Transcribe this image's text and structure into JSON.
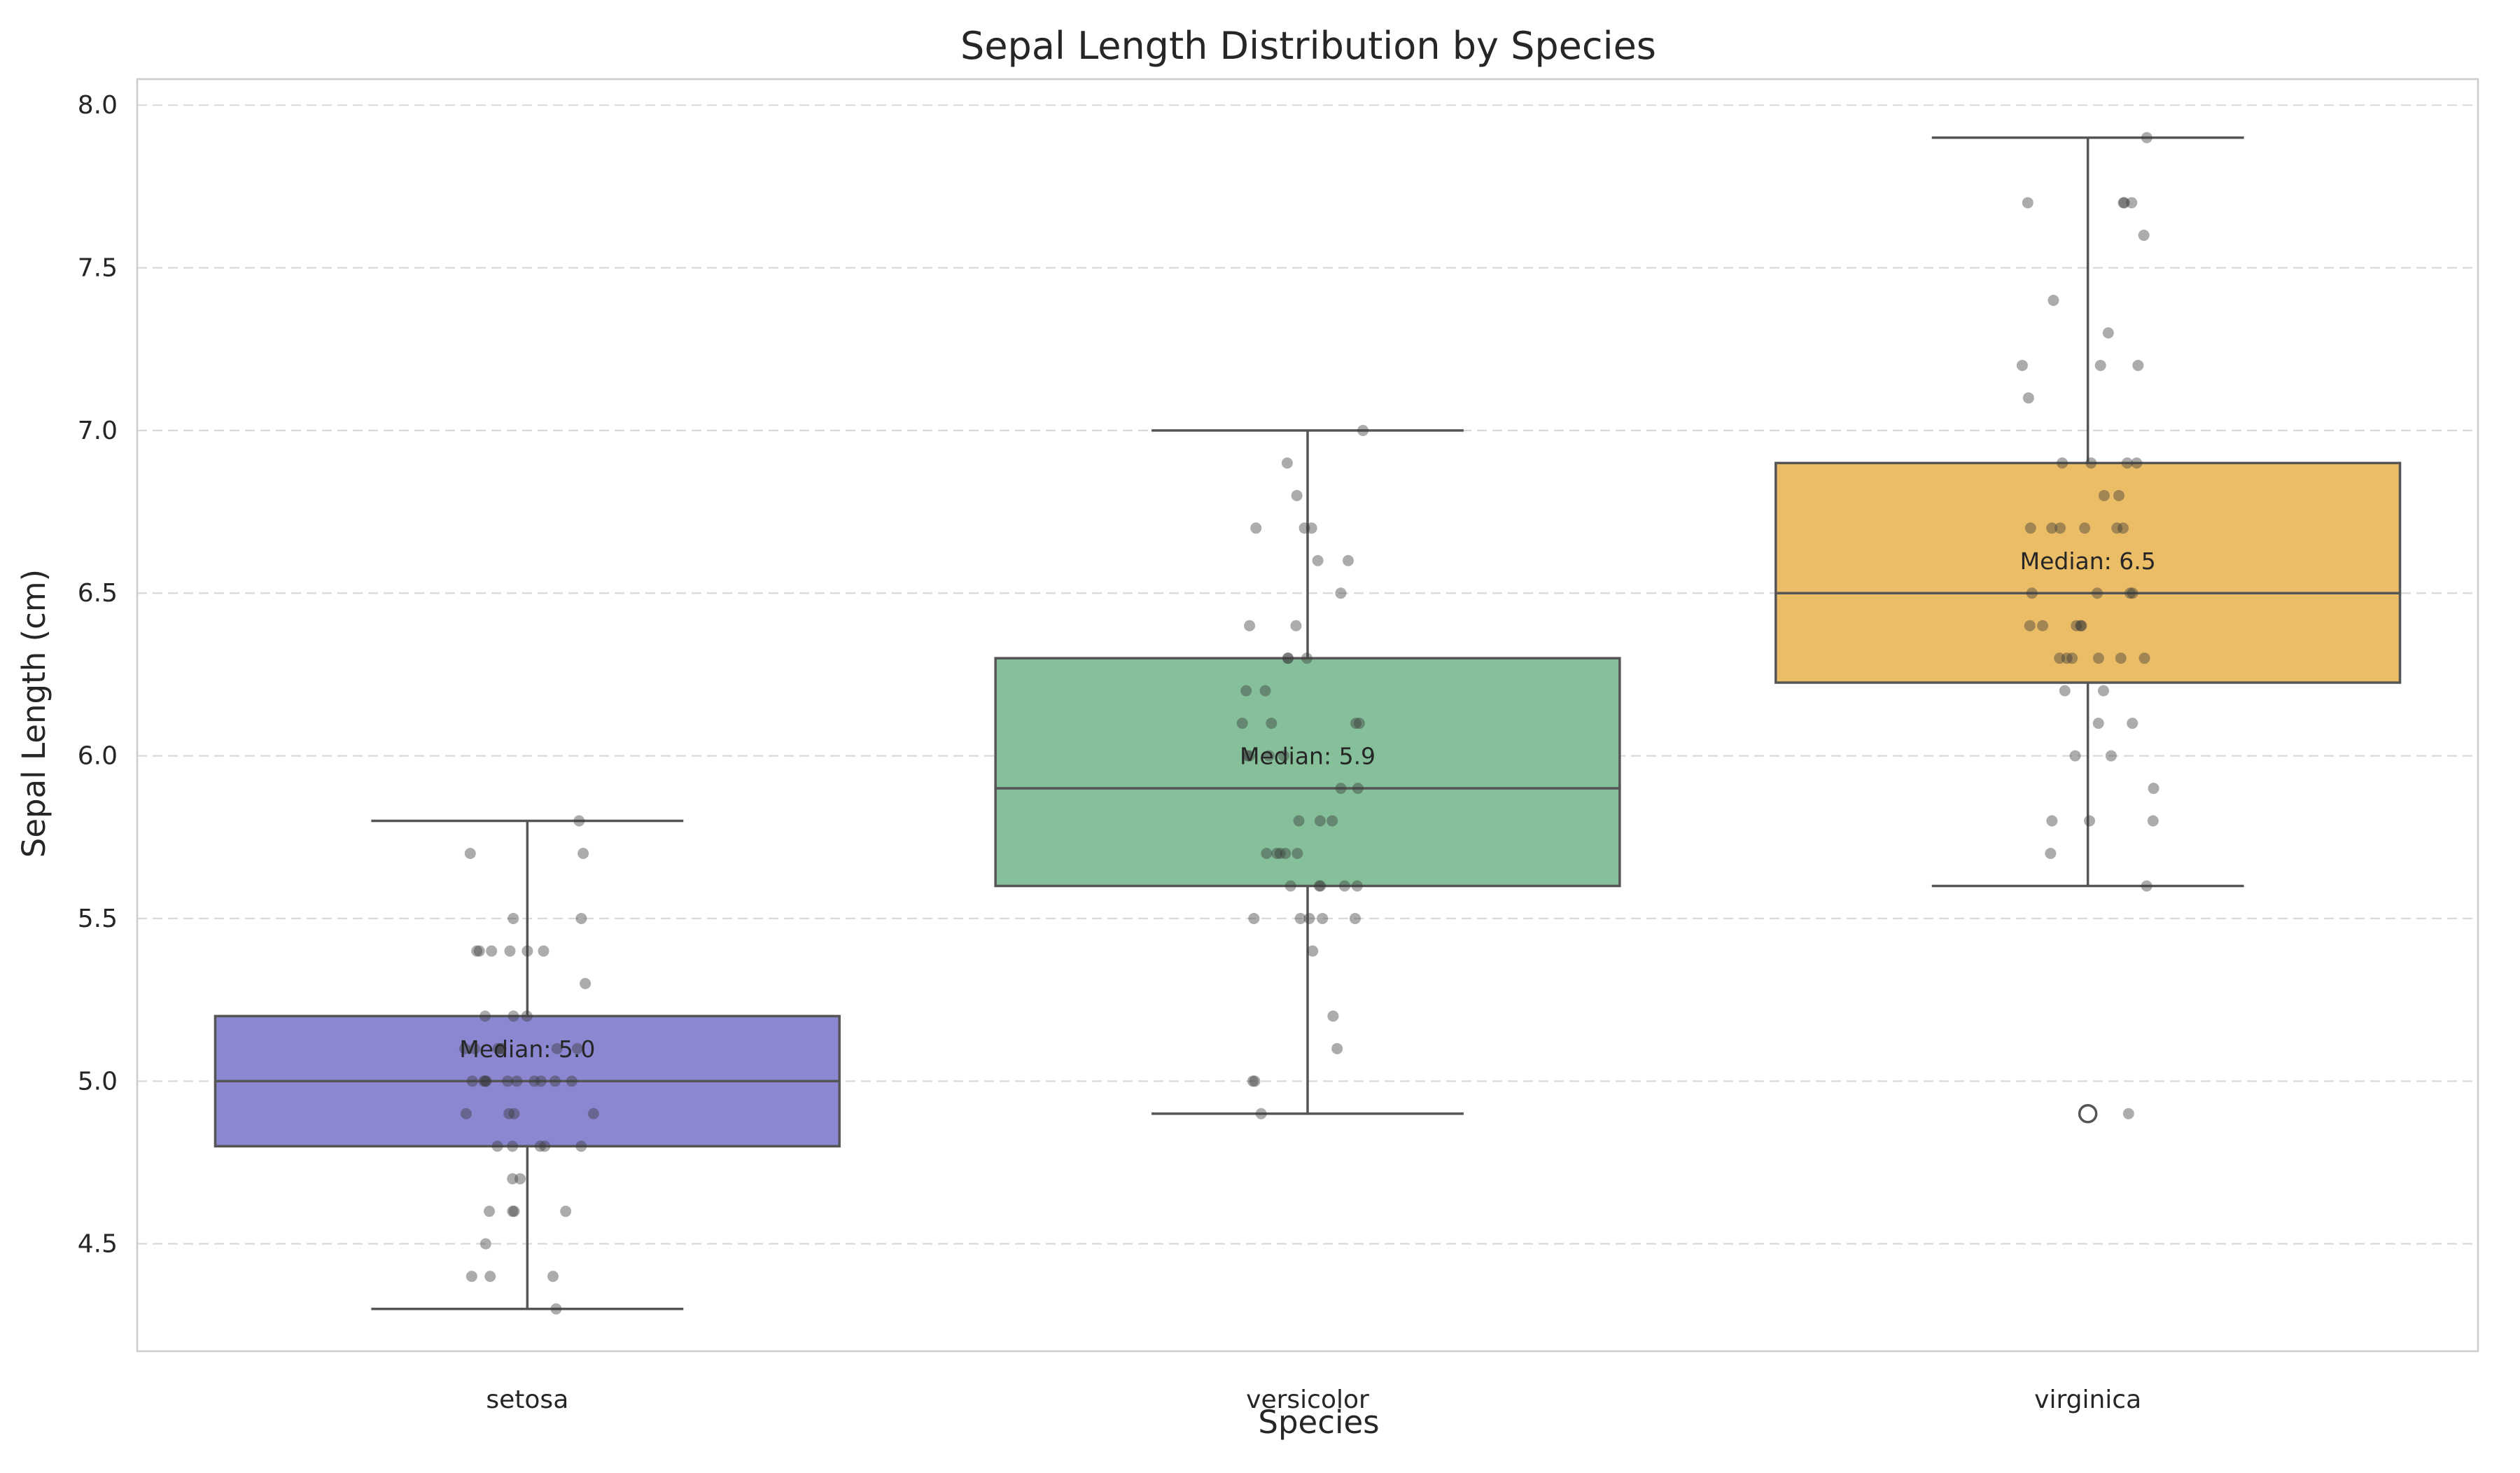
{
  "chart_data": {
    "type": "box",
    "title": "Sepal Length Distribution by Species",
    "xlabel": "Species",
    "ylabel": "Sepal Length (cm)",
    "ylim": [
      4.17,
      8.08
    ],
    "yticks": [
      "4.5",
      "5.0",
      "5.5",
      "6.0",
      "6.5",
      "7.0",
      "7.5",
      "8.0"
    ],
    "grid": "y-dashed",
    "categories": [
      "setosa",
      "versicolor",
      "virginica"
    ],
    "colors": [
      "#8B87D0",
      "#85C09A",
      "#ECBD67"
    ],
    "edge_color": "#555555",
    "boxes": [
      {
        "category": "setosa",
        "whislo": 4.3,
        "q1": 4.8,
        "median": 5.0,
        "q3": 5.2,
        "whishi": 5.8,
        "fliers": [],
        "median_label": "Median: 5.0",
        "points": [
          5.8,
          5.7,
          5.7,
          5.5,
          5.5,
          5.4,
          5.4,
          5.4,
          5.4,
          5.4,
          5.4,
          5.3,
          5.2,
          5.2,
          5.2,
          5.1,
          5.1,
          5.1,
          5.1,
          5.1,
          5.1,
          5.1,
          5.0,
          5.0,
          5.0,
          5.0,
          5.0,
          5.0,
          5.0,
          5.0,
          5.0,
          5.0,
          4.9,
          4.9,
          4.9,
          4.9,
          4.8,
          4.8,
          4.8,
          4.8,
          4.8,
          4.7,
          4.7,
          4.6,
          4.6,
          4.6,
          4.6,
          4.5,
          4.4,
          4.4,
          4.4,
          4.3
        ]
      },
      {
        "category": "versicolor",
        "whislo": 4.9,
        "q1": 5.6,
        "median": 5.9,
        "q3": 6.3,
        "whishi": 7.0,
        "fliers": [],
        "median_label": "Median: 5.9",
        "points": [
          7.0,
          6.9,
          6.8,
          6.7,
          6.7,
          6.7,
          6.6,
          6.6,
          6.5,
          6.4,
          6.4,
          6.3,
          6.3,
          6.3,
          6.2,
          6.2,
          6.1,
          6.1,
          6.1,
          6.1,
          6.0,
          6.0,
          6.0,
          6.0,
          5.9,
          5.9,
          5.8,
          5.8,
          5.8,
          5.7,
          5.7,
          5.7,
          5.7,
          5.7,
          5.6,
          5.6,
          5.6,
          5.6,
          5.6,
          5.5,
          5.5,
          5.5,
          5.5,
          5.5,
          5.4,
          5.2,
          5.1,
          5.0,
          5.0,
          4.9
        ]
      },
      {
        "category": "virginica",
        "whislo": 5.6,
        "q1": 6.225,
        "median": 6.5,
        "q3": 6.9,
        "whishi": 7.9,
        "fliers": [
          4.9
        ],
        "median_label": "Median: 6.5",
        "points": [
          7.9,
          7.7,
          7.7,
          7.7,
          7.7,
          7.6,
          7.4,
          7.3,
          7.2,
          7.2,
          7.2,
          7.1,
          6.9,
          6.9,
          6.9,
          6.9,
          6.8,
          6.8,
          6.7,
          6.7,
          6.7,
          6.7,
          6.7,
          6.7,
          6.5,
          6.5,
          6.5,
          6.5,
          6.4,
          6.4,
          6.4,
          6.4,
          6.4,
          6.3,
          6.3,
          6.3,
          6.3,
          6.3,
          6.3,
          6.2,
          6.2,
          6.1,
          6.1,
          6.0,
          6.0,
          5.9,
          5.8,
          5.8,
          5.8,
          5.7,
          5.6,
          4.9
        ]
      }
    ]
  }
}
